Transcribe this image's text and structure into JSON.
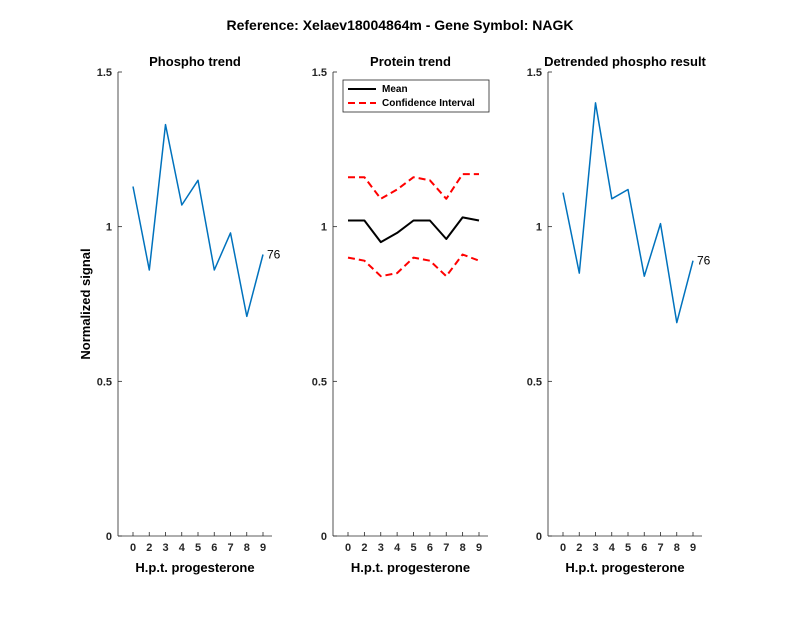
{
  "figure_title": "Reference:  Xelaev18004864m - Gene Symbol:  NAGK",
  "colors": {
    "phospho": "#0072BD",
    "mean": "#000000",
    "ci": "#FF0000",
    "axis": "#262626"
  },
  "chart_data": [
    {
      "type": "line",
      "title": "Phospho trend",
      "xlabel": "H.p.t. progesterone",
      "ylabel": "Normalized signal",
      "categories": [
        "0",
        "2",
        "3",
        "4",
        "5",
        "6",
        "7",
        "8",
        "9"
      ],
      "ylim": [
        0,
        1.5
      ],
      "yticks": [
        "0",
        "0.5",
        "1",
        "1.5"
      ],
      "series": [
        {
          "values": [
            1.13,
            0.86,
            1.33,
            1.07,
            1.15,
            0.86,
            0.98,
            0.71,
            0.91
          ],
          "style": "solid"
        }
      ],
      "annotation": "76"
    },
    {
      "type": "line",
      "title": "Protein trend",
      "xlabel": "H.p.t. progesterone",
      "ylabel": "",
      "categories": [
        "0",
        "2",
        "3",
        "4",
        "5",
        "6",
        "7",
        "8",
        "9"
      ],
      "ylim": [
        0,
        1.5
      ],
      "yticks": [
        "0",
        "0.5",
        "1",
        "1.5"
      ],
      "legend": {
        "placement": "top",
        "entries": [
          "Mean",
          "Confidence Interval"
        ]
      },
      "series": [
        {
          "name": "Mean",
          "values": [
            1.02,
            1.02,
            0.95,
            0.98,
            1.02,
            1.02,
            0.96,
            1.03,
            1.02
          ],
          "style": "solid"
        },
        {
          "name": "Confidence Interval",
          "values": [
            1.16,
            1.16,
            1.09,
            1.12,
            1.16,
            1.15,
            1.09,
            1.17,
            1.17
          ],
          "style": "dashed"
        },
        {
          "name": "Confidence Interval",
          "values": [
            0.9,
            0.89,
            0.84,
            0.85,
            0.9,
            0.89,
            0.84,
            0.91,
            0.89
          ],
          "style": "dashed"
        }
      ]
    },
    {
      "type": "line",
      "title": "Detrended phospho result",
      "xlabel": "H.p.t. progesterone",
      "ylabel": "",
      "categories": [
        "0",
        "2",
        "3",
        "4",
        "5",
        "6",
        "7",
        "8",
        "9"
      ],
      "ylim": [
        0,
        1.5
      ],
      "yticks": [
        "0",
        "0.5",
        "1",
        "1.5"
      ],
      "series": [
        {
          "values": [
            1.11,
            0.85,
            1.4,
            1.09,
            1.12,
            0.84,
            1.01,
            0.69,
            0.89
          ],
          "style": "solid"
        }
      ],
      "annotation": "76"
    }
  ]
}
